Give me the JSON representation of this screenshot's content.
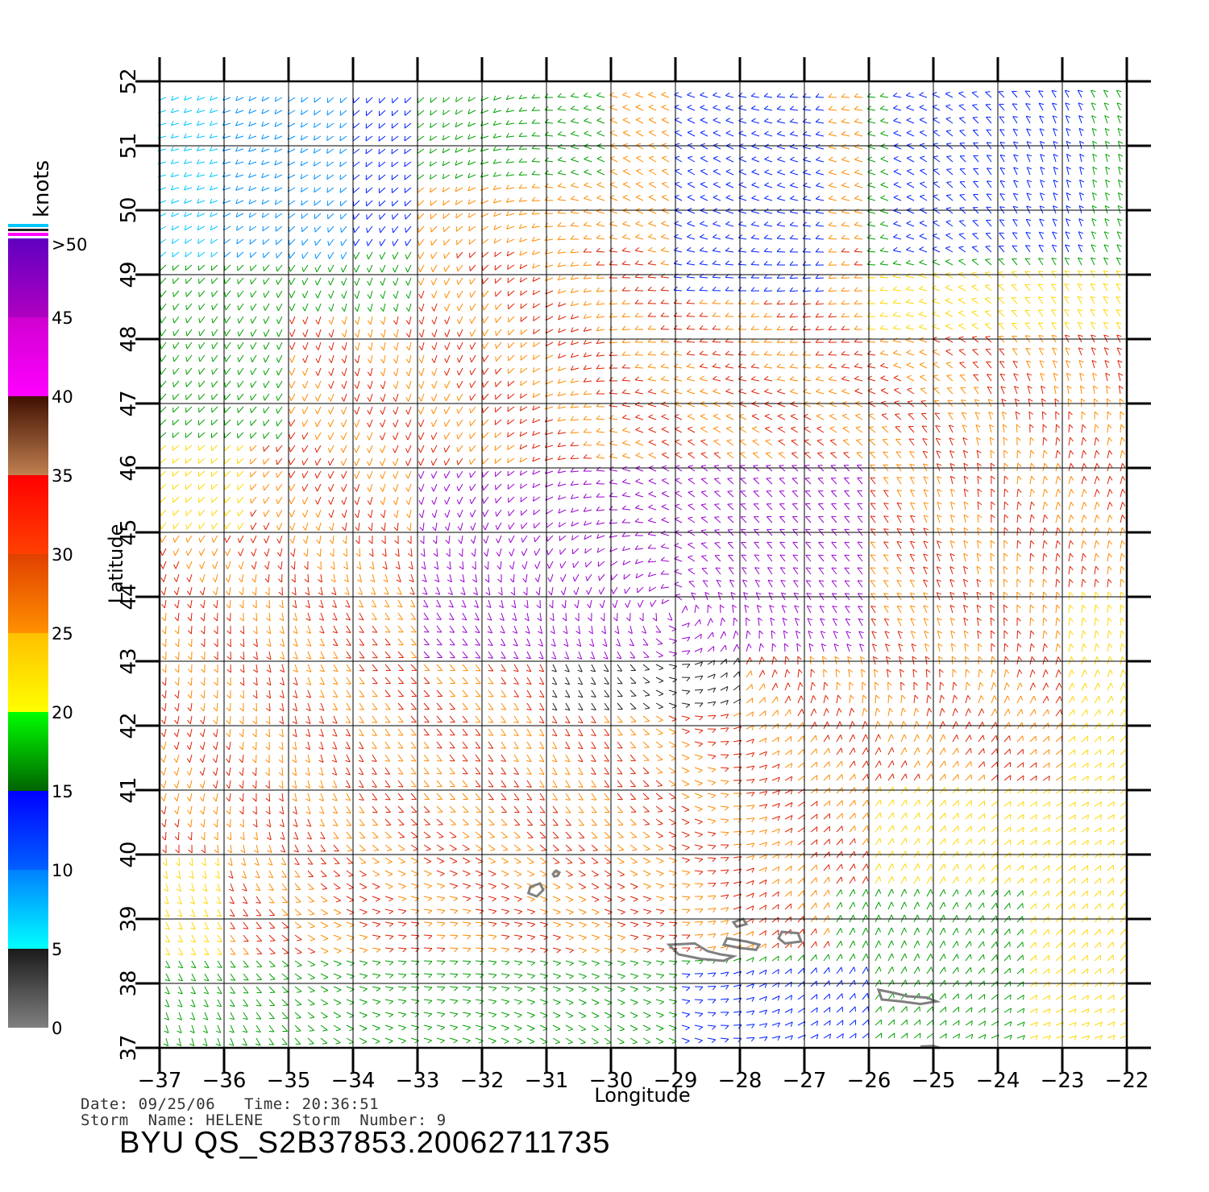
{
  "map": {
    "axis_labels": {
      "x": "Longitude",
      "y": "Latitude"
    },
    "lon_ticks": [
      "-37",
      "-36",
      "-35",
      "-34",
      "-33",
      "-32",
      "-31",
      "-30",
      "-29",
      "-28",
      "-27",
      "-26",
      "-25",
      "-24",
      "-23",
      "-22"
    ],
    "lat_ticks": [
      "37",
      "38",
      "39",
      "40",
      "41",
      "42",
      "43",
      "44",
      "45",
      "46",
      "47",
      "48",
      "49",
      "50",
      "51",
      "52"
    ],
    "lon_range": [
      -37,
      -22
    ],
    "lat_range": [
      37,
      52
    ],
    "grid": true,
    "background_color": "#ffffff",
    "islands_color": "#808080"
  },
  "colorbar": {
    "unit": "knots",
    "labels": [
      "0",
      "5",
      "10",
      "15",
      "20",
      "25",
      "30",
      "35",
      "40",
      "45",
      ">50"
    ],
    "bands": [
      {
        "range": "0-5",
        "from": "#808080",
        "to": "#1a1a1a"
      },
      {
        "range": "5-10",
        "from": "#00ffff",
        "to": "#0080ff"
      },
      {
        "range": "10-15",
        "from": "#0060ff",
        "to": "#0000ff"
      },
      {
        "range": "15-20",
        "from": "#006400",
        "to": "#00ff00"
      },
      {
        "range": "20-25",
        "from": "#ffff00",
        "to": "#ffc000"
      },
      {
        "range": "25-30",
        "from": "#ff9000",
        "to": "#e04000"
      },
      {
        "range": "30-35",
        "from": "#ff4000",
        "to": "#ff0000"
      },
      {
        "range": "35-40",
        "from": "#c08050",
        "to": "#401000"
      },
      {
        "range": "40-45",
        "from": "#ff00ff",
        "to": "#d000d0"
      },
      {
        "range": "45-50",
        "from": "#b000c0",
        "to": "#6000c0"
      }
    ]
  },
  "meta": {
    "date_line": "Date: 09/25/06   Time: 20:36:51",
    "storm_line": "Storm  Name: HELENE   Storm  Number: 9",
    "title": "BYU  QS_S2B37853.20062711735"
  }
}
